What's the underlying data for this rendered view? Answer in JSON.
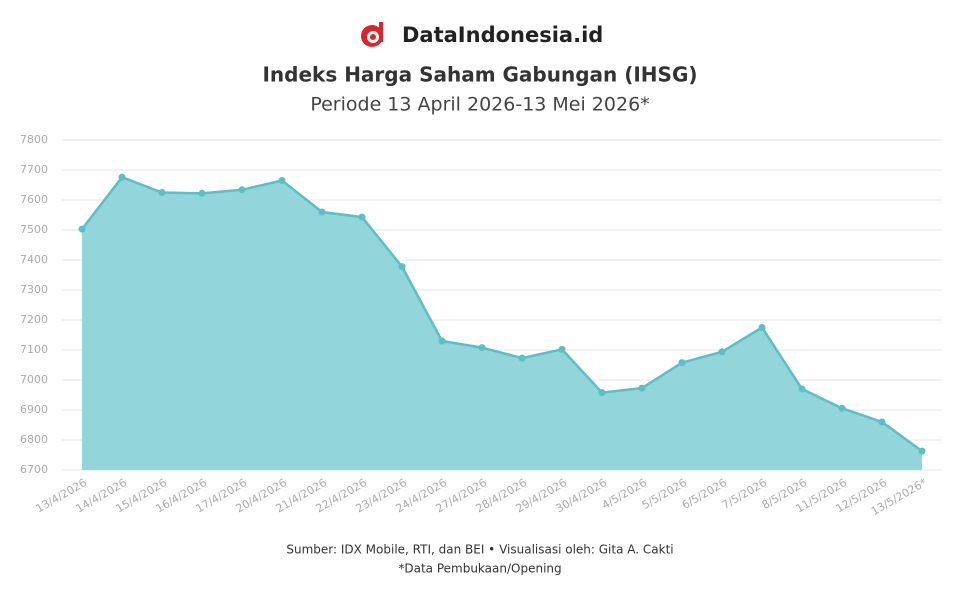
{
  "brand": "DataIndonesia.id",
  "chart_data": {
    "type": "area",
    "title": "Indeks Harga Saham Gabungan (IHSG)",
    "subtitle": "Periode 13 April 2026-13 Mei 2026*",
    "source": "Sumber: IDX Mobile, RTI, dan BEI • Visualisasi oleh: Gita A. Cakti",
    "note": "*Data Pembukaan/Opening",
    "categories": [
      "13/4/2026",
      "14/4/2026",
      "15/4/2026",
      "16/4/2026",
      "17/4/2026",
      "20/4/2026",
      "21/4/2026",
      "22/4/2026",
      "23/4/2026",
      "24/4/2026",
      "27/4/2026",
      "28/4/2026",
      "29/4/2026",
      "30/4/2026",
      "4/5/2026",
      "5/5/2026",
      "6/5/2026",
      "7/5/2026",
      "8/5/2026",
      "11/5/2026",
      "12/5/2026",
      "13/5/2026*"
    ],
    "values": [
      7503,
      7676,
      7625,
      7622,
      7634,
      7665,
      7560,
      7543,
      7378,
      7130,
      7108,
      7073,
      7102,
      6958,
      6973,
      7058,
      7094,
      7175,
      6970,
      6906,
      6860,
      6763
    ],
    "color": "#5bbfc6",
    "fill": "#92d6dc",
    "ylim": [
      6700,
      7800
    ],
    "yticks": [
      6700,
      6800,
      6900,
      7000,
      7100,
      7200,
      7300,
      7400,
      7500,
      7600,
      7700,
      7800
    ],
    "grid": true
  }
}
